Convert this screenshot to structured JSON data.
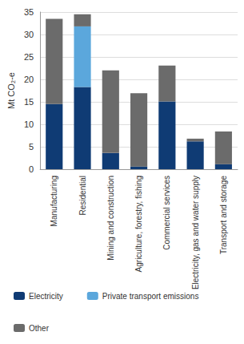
{
  "chart_data": {
    "type": "bar",
    "stacked": true,
    "y_label": "Mt CO₂-e",
    "categories": [
      "Manufacturing",
      "Residential",
      "Mining and construction",
      "Agriculture, forestry, fishing",
      "Commercial services",
      "Electricity, gas and water supply",
      "Transport and storage"
    ],
    "series": [
      {
        "name": "Electricity",
        "color": "#0f3b74",
        "values": [
          14.5,
          18.3,
          3.6,
          0.6,
          15.1,
          6.2,
          1.1
        ]
      },
      {
        "name": "Private transport emissions",
        "color": "#5ba7dc",
        "values": [
          null,
          13.5,
          null,
          null,
          null,
          null,
          null
        ]
      },
      {
        "name": "Other",
        "color": "#6b6b6b",
        "values": [
          19.0,
          2.7,
          18.4,
          16.3,
          8.0,
          0.6,
          7.3
        ]
      }
    ],
    "ylim": [
      0,
      35
    ],
    "yticks": [
      0,
      5,
      10,
      15,
      20,
      25,
      30,
      35
    ],
    "grid": true,
    "legend": "bottom"
  }
}
